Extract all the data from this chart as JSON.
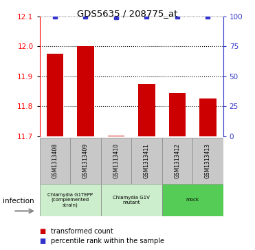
{
  "title": "GDS5635 / 208775_at",
  "samples": [
    "GSM1313408",
    "GSM1313409",
    "GSM1313410",
    "GSM1313411",
    "GSM1313412",
    "GSM1313413"
  ],
  "bar_values": [
    11.975,
    12.0,
    11.703,
    11.875,
    11.845,
    11.825
  ],
  "blue_values": [
    99.5,
    99.5,
    99.0,
    99.5,
    99.5,
    99.5
  ],
  "ymin": 11.7,
  "ymax": 12.1,
  "yticks_left": [
    11.7,
    11.8,
    11.9,
    12.0,
    12.1
  ],
  "yticks_right": [
    0,
    25,
    50,
    75,
    100
  ],
  "bar_color": "#cc0000",
  "blue_color": "#3333cc",
  "groups": [
    {
      "label": "Chlamydia G1TEPP\n(complemented\nstrain)",
      "start": 0,
      "end": 2,
      "bg": "#cceecc"
    },
    {
      "label": "Chlamydia G1V\nmutant",
      "start": 2,
      "end": 4,
      "bg": "#cceecc"
    },
    {
      "label": "mock",
      "start": 4,
      "end": 6,
      "bg": "#55cc55"
    }
  ],
  "infection_label": "infection",
  "legend_red": "transformed count",
  "legend_blue": "percentile rank within the sample",
  "bar_width": 0.55,
  "sample_box_color": "#c8c8c8",
  "sample_box_edge": "#888888"
}
